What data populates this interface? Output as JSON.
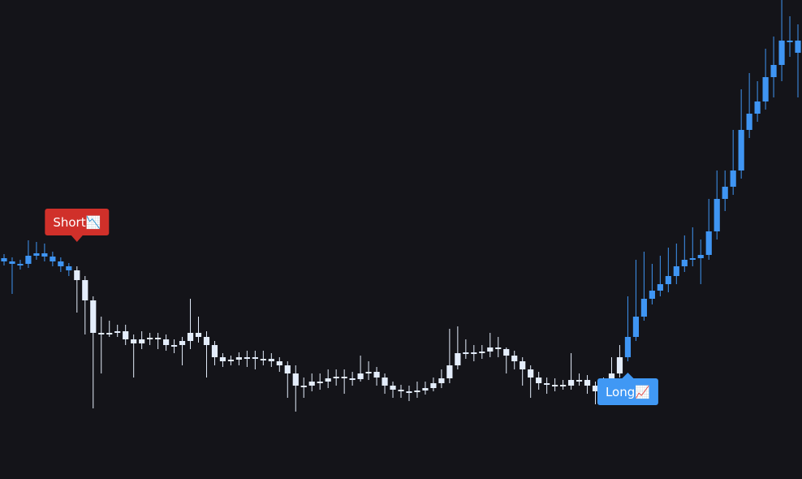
{
  "chart_data": {
    "type": "candlestick",
    "ylim": [
      0,
      590
    ],
    "color": "#3f95f3",
    "open": [
      272,
      268,
      265,
      265,
      275,
      278,
      274,
      268,
      262,
      257,
      245,
      220,
      180,
      180,
      180,
      182,
      172,
      167,
      172,
      174,
      172,
      165,
      165,
      170,
      180,
      175,
      165,
      150,
      145,
      147,
      150,
      150,
      148,
      148,
      145,
      140,
      130,
      115,
      115,
      120,
      120,
      124,
      126,
      124,
      123,
      130,
      132,
      125,
      115,
      110,
      108,
      107,
      109,
      112,
      118,
      124,
      140,
      155,
      156,
      155,
      157,
      162,
      160,
      152,
      145,
      135,
      125,
      118,
      116,
      116,
      115,
      122,
      122,
      115,
      108,
      116,
      130,
      150,
      175,
      200,
      222,
      232,
      240,
      250,
      262,
      270,
      272,
      276,
      305,
      345,
      360,
      380,
      430,
      450,
      465,
      495,
      510,
      540,
      540
    ],
    "high": [
      277,
      273,
      270,
      294,
      292,
      290,
      280,
      273,
      266,
      262,
      250,
      225,
      200,
      195,
      190,
      190,
      178,
      182,
      180,
      180,
      178,
      172,
      175,
      222,
      200,
      182,
      170,
      155,
      152,
      156,
      158,
      158,
      158,
      155,
      150,
      145,
      140,
      125,
      130,
      130,
      135,
      135,
      135,
      132,
      152,
      145,
      138,
      130,
      120,
      116,
      115,
      120,
      120,
      125,
      135,
      185,
      188,
      172,
      165,
      165,
      180,
      175,
      162,
      158,
      150,
      140,
      132,
      125,
      124,
      122,
      155,
      130,
      128,
      120,
      125,
      150,
      165,
      225,
      270,
      280,
      265,
      275,
      285,
      290,
      300,
      310,
      295,
      345,
      380,
      380,
      430,
      480,
      500,
      490,
      530,
      545,
      590,
      570,
      560
    ],
    "low": [
      263,
      228,
      258,
      260,
      270,
      268,
      262,
      255,
      250,
      205,
      178,
      87,
      130,
      175,
      175,
      165,
      125,
      160,
      165,
      160,
      158,
      155,
      140,
      160,
      168,
      125,
      140,
      138,
      140,
      140,
      138,
      135,
      140,
      138,
      132,
      100,
      83,
      100,
      108,
      110,
      112,
      115,
      105,
      115,
      120,
      122,
      115,
      105,
      100,
      100,
      96,
      100,
      104,
      108,
      112,
      118,
      135,
      148,
      145,
      148,
      150,
      150,
      130,
      135,
      115,
      100,
      110,
      105,
      108,
      110,
      110,
      115,
      105,
      92,
      100,
      112,
      125,
      145,
      170,
      195,
      215,
      225,
      230,
      240,
      255,
      262,
      240,
      270,
      295,
      330,
      350,
      370,
      420,
      440,
      455,
      470,
      490,
      520,
      470
    ],
    "close": [
      268,
      265,
      265,
      275,
      278,
      274,
      268,
      262,
      257,
      245,
      220,
      180,
      180,
      180,
      182,
      172,
      167,
      172,
      174,
      172,
      165,
      165,
      170,
      180,
      175,
      165,
      150,
      145,
      147,
      150,
      150,
      148,
      148,
      145,
      140,
      130,
      115,
      115,
      120,
      120,
      124,
      126,
      124,
      123,
      130,
      132,
      125,
      115,
      110,
      108,
      107,
      109,
      112,
      118,
      124,
      140,
      155,
      156,
      155,
      157,
      162,
      160,
      152,
      145,
      135,
      125,
      118,
      116,
      116,
      115,
      122,
      122,
      115,
      108,
      116,
      130,
      150,
      175,
      200,
      222,
      232,
      240,
      250,
      262,
      270,
      272,
      276,
      305,
      345,
      360,
      380,
      430,
      450,
      465,
      495,
      510,
      540,
      540,
      525
    ],
    "annotations": [
      {
        "text": "Short📉",
        "index": 9,
        "position": "above",
        "color": "#d0302a",
        "candle_color": "#e4edfb"
      },
      {
        "text": "Long📈",
        "index": 77,
        "position": "below",
        "color": "#4098f4",
        "candle_color": "#3f95f3"
      }
    ]
  }
}
